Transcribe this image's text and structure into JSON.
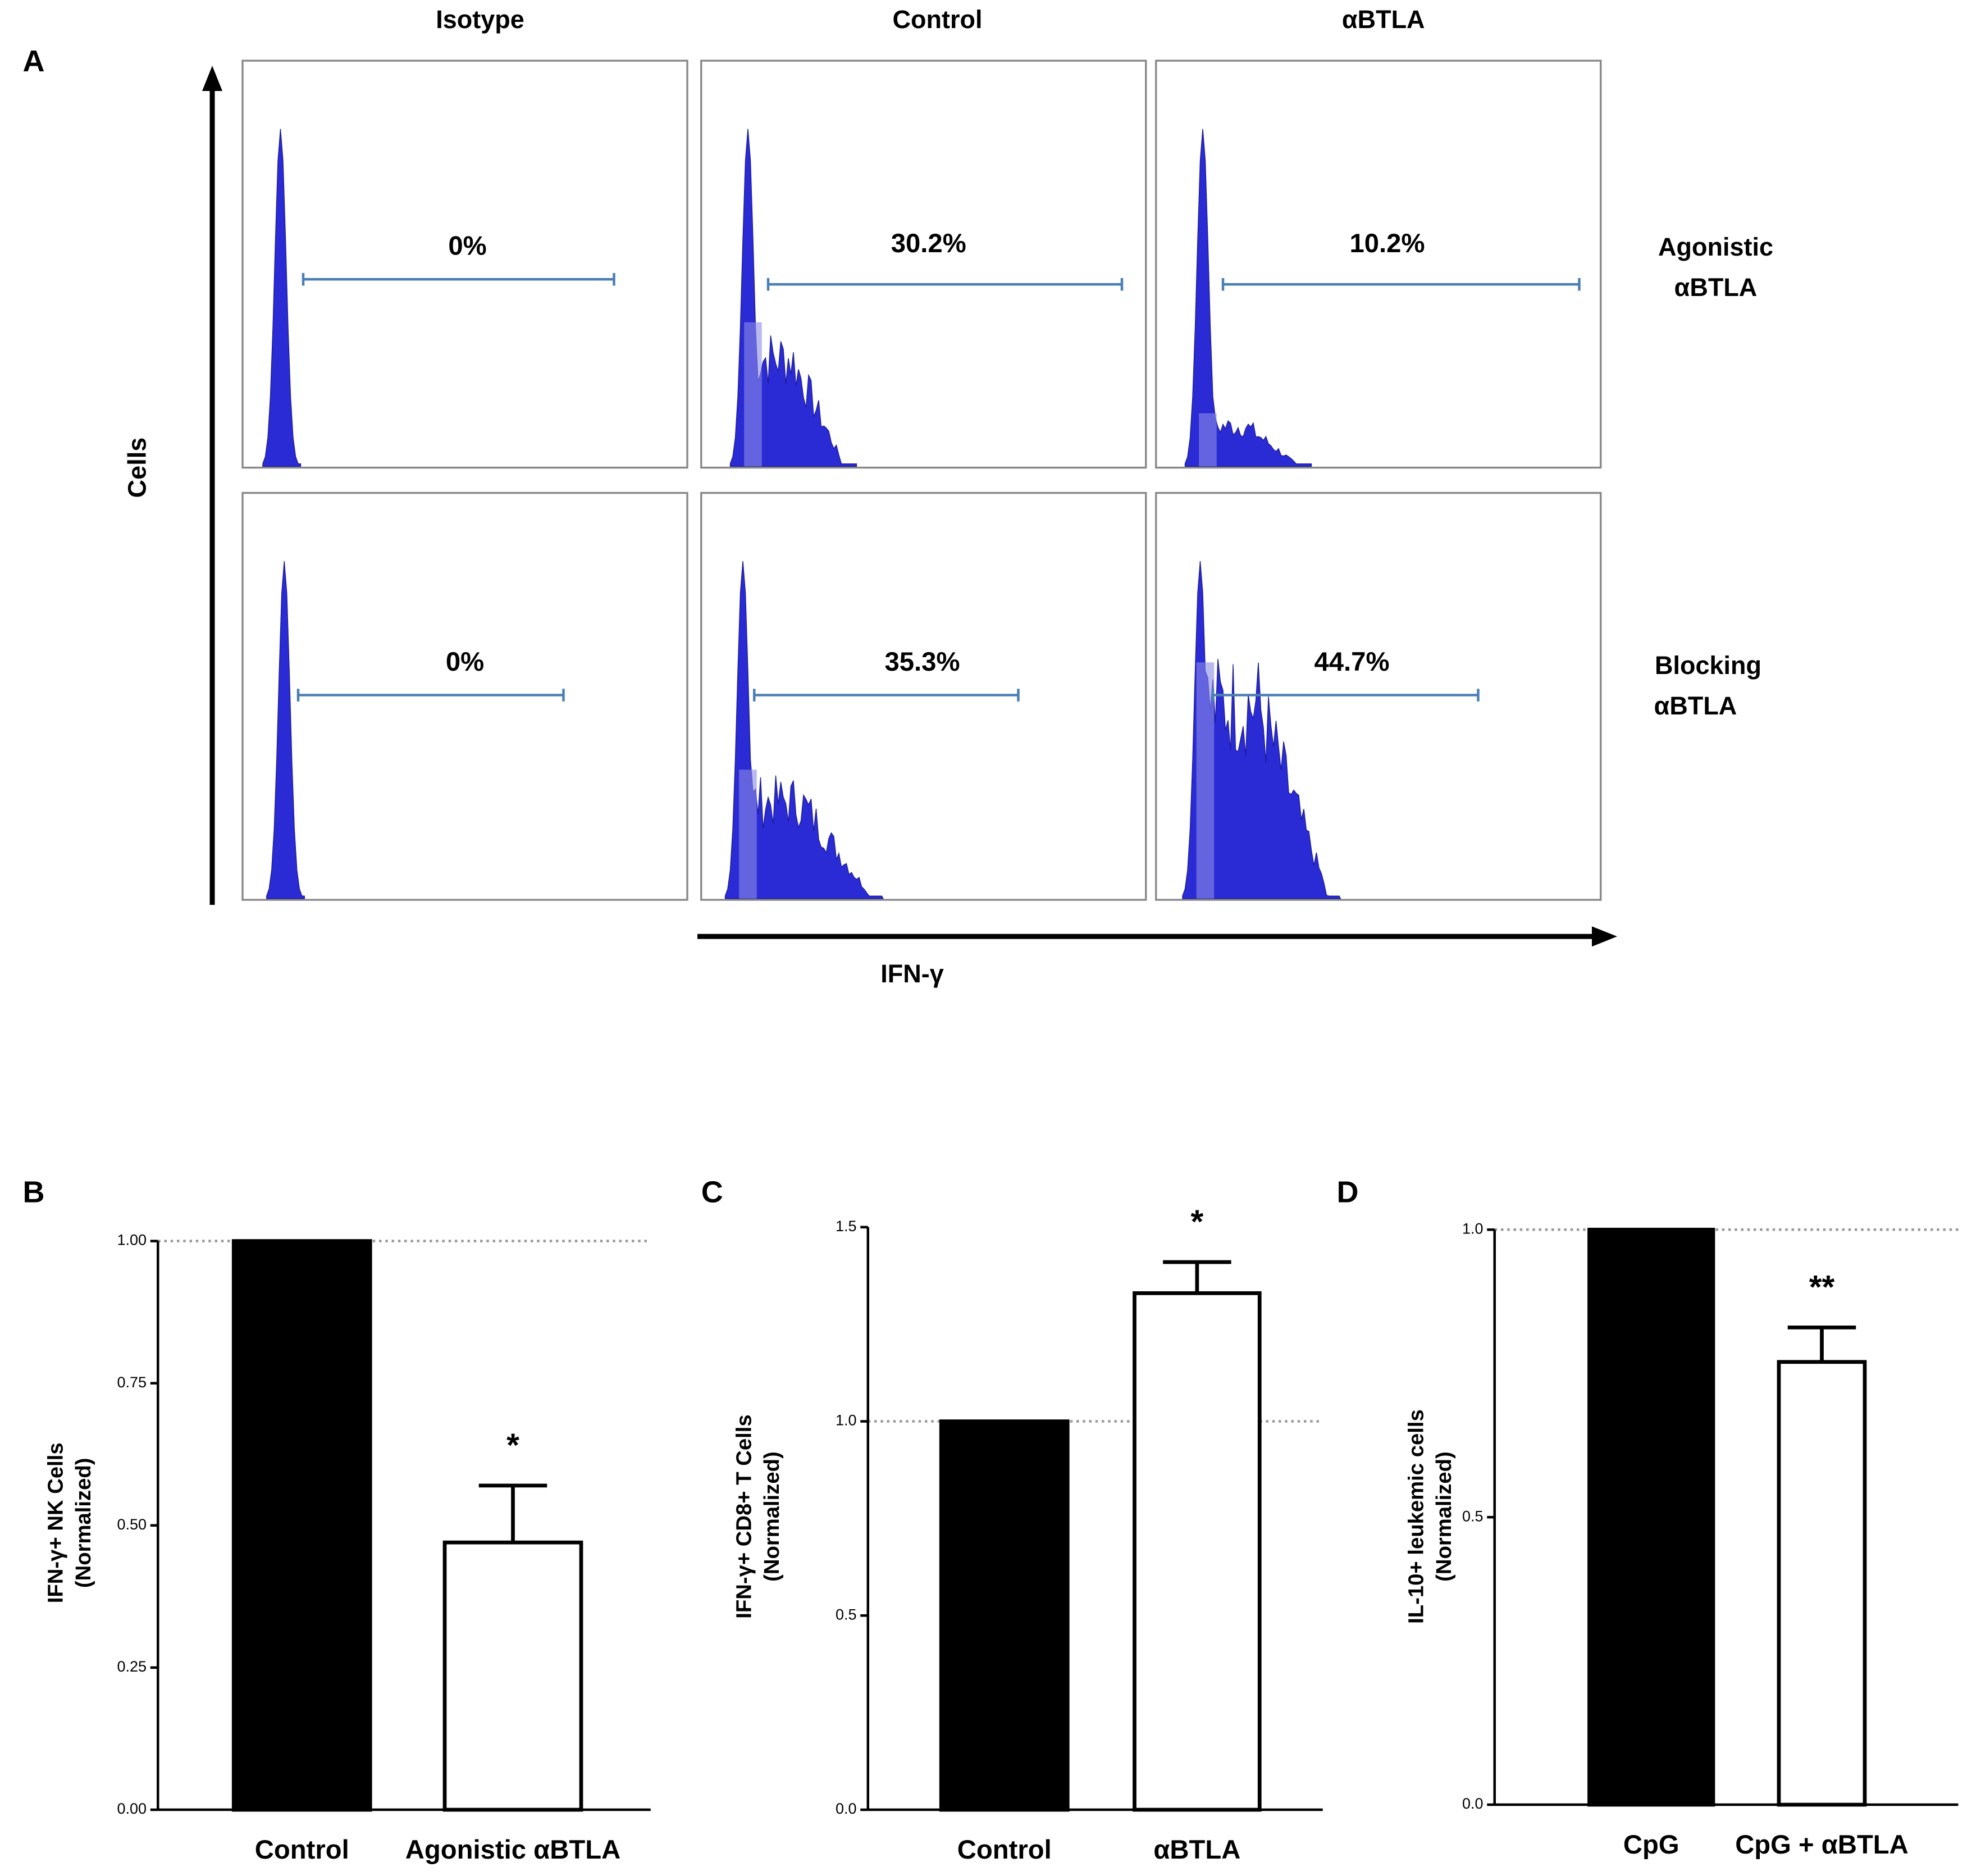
{
  "panel_a": {
    "letter": "A",
    "columns": [
      "Isotype",
      "Control",
      "αBTLA"
    ],
    "rows": [
      [
        "Agonistic",
        "αBTLA"
      ],
      [
        "Blocking",
        "αBTLA"
      ]
    ],
    "y_axis_label": "Cells",
    "x_axis_label": "IFN-γ",
    "gates": [
      [
        "0%",
        "30.2%",
        "10.2%"
      ],
      [
        "0%",
        "35.3%",
        "44.7%"
      ]
    ]
  },
  "chart_data": [
    {
      "type": "bar",
      "panel": "B",
      "ylabel": [
        "IFN-γ+ NK Cells",
        "(Normalized)"
      ],
      "categories": [
        "Control",
        "Agonistic αBTLA"
      ],
      "values": [
        1.0,
        0.47
      ],
      "errors": [
        null,
        0.1
      ],
      "colors": [
        "#000000",
        "#ffffff"
      ],
      "significance": [
        null,
        "*"
      ],
      "reference_line": 1.0,
      "ylim": [
        0,
        1.0
      ],
      "yticks": [
        {
          "value": 0,
          "label": "0.00"
        },
        {
          "value": 0.25,
          "label": "0.25"
        },
        {
          "value": 0.5,
          "label": "0.50"
        },
        {
          "value": 0.75,
          "label": "0.75"
        },
        {
          "value": 1.0,
          "label": "1.00"
        }
      ]
    },
    {
      "type": "bar",
      "panel": "C",
      "ylabel": [
        "IFN-γ+ CD8+ T Cells",
        "(Normalized)"
      ],
      "categories": [
        "Control",
        "αBTLA"
      ],
      "values": [
        1.0,
        1.33
      ],
      "errors": [
        null,
        0.08
      ],
      "colors": [
        "#000000",
        "#ffffff"
      ],
      "significance": [
        null,
        "*"
      ],
      "reference_line": 1.0,
      "ylim": [
        0,
        1.5
      ],
      "yticks": [
        {
          "value": 0,
          "label": "0.0"
        },
        {
          "value": 0.5,
          "label": "0.5"
        },
        {
          "value": 1.0,
          "label": "1.0"
        },
        {
          "value": 1.5,
          "label": "1.5"
        }
      ]
    },
    {
      "type": "bar",
      "panel": "D",
      "ylabel": [
        "IL-10+ leukemic cells",
        "(Normalized)"
      ],
      "categories": [
        "CpG",
        "CpG + αBTLA"
      ],
      "values": [
        1.0,
        0.77
      ],
      "errors": [
        null,
        0.06
      ],
      "colors": [
        "#000000",
        "#ffffff"
      ],
      "significance": [
        null,
        "**"
      ],
      "reference_line": 1.0,
      "ylim": [
        0,
        1.0
      ],
      "yticks": [
        {
          "value": 0,
          "label": "0.0"
        },
        {
          "value": 0.5,
          "label": "0.5"
        },
        {
          "value": 1.0,
          "label": "1.0"
        }
      ]
    }
  ]
}
